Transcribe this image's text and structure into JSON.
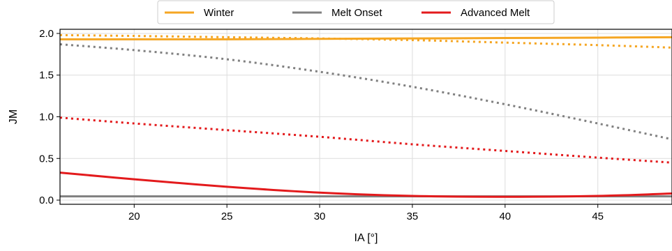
{
  "chart_data": {
    "type": "line",
    "xlabel": "IA [°]",
    "ylabel": "JM",
    "xlim": [
      16,
      49
    ],
    "ylim": [
      -0.05,
      2.05
    ],
    "xticks": [
      20,
      25,
      30,
      35,
      40,
      45
    ],
    "yticks": [
      0.0,
      0.5,
      1.0,
      1.5,
      2.0
    ],
    "xtick_labels": [
      "20",
      "25",
      "30",
      "35",
      "40",
      "45"
    ],
    "ytick_labels": [
      "0.0",
      "0.5",
      "1.0",
      "1.5",
      "2.0"
    ],
    "grid": true,
    "legend_position": "top-center-outside",
    "legend": [
      {
        "label": "Winter",
        "color": "#f5a623"
      },
      {
        "label": "Melt Onset",
        "color": "#808080"
      },
      {
        "label": "Advanced Melt",
        "color": "#e31a1c"
      }
    ],
    "series": [
      {
        "legend_entry": "Winter",
        "style": "solid",
        "color": "#f5a623",
        "x": [
          16,
          20,
          25,
          30,
          35,
          40,
          45,
          49
        ],
        "y": [
          1.93,
          1.93,
          1.93,
          1.935,
          1.94,
          1.945,
          1.95,
          1.955
        ]
      },
      {
        "legend_entry": "Winter",
        "style": "dotted",
        "color": "#f5a623",
        "x": [
          16,
          20,
          25,
          30,
          35,
          40,
          45,
          49
        ],
        "y": [
          1.98,
          1.97,
          1.955,
          1.94,
          1.92,
          1.89,
          1.86,
          1.83
        ]
      },
      {
        "legend_entry": "Melt Onset",
        "style": "solid",
        "color": "#808080",
        "x": [
          16,
          20,
          25,
          30,
          35,
          40,
          45,
          49
        ],
        "y": [
          0.045,
          0.045,
          0.045,
          0.045,
          0.045,
          0.045,
          0.045,
          0.045
        ]
      },
      {
        "legend_entry": "Melt Onset",
        "style": "dotted",
        "color": "#808080",
        "x": [
          16,
          20,
          25,
          30,
          35,
          40,
          45,
          49
        ],
        "y": [
          1.87,
          1.8,
          1.69,
          1.54,
          1.36,
          1.15,
          0.92,
          0.73
        ]
      },
      {
        "legend_entry": "Advanced Melt",
        "style": "solid",
        "color": "#e31a1c",
        "x": [
          16,
          20,
          25,
          30,
          35,
          40,
          45,
          49
        ],
        "y": [
          0.33,
          0.25,
          0.16,
          0.09,
          0.05,
          0.04,
          0.05,
          0.08
        ]
      },
      {
        "legend_entry": "Advanced Melt",
        "style": "dotted",
        "color": "#e31a1c",
        "x": [
          16,
          20,
          25,
          30,
          35,
          40,
          45,
          49
        ],
        "y": [
          0.99,
          0.92,
          0.84,
          0.76,
          0.67,
          0.59,
          0.51,
          0.45
        ]
      }
    ]
  }
}
